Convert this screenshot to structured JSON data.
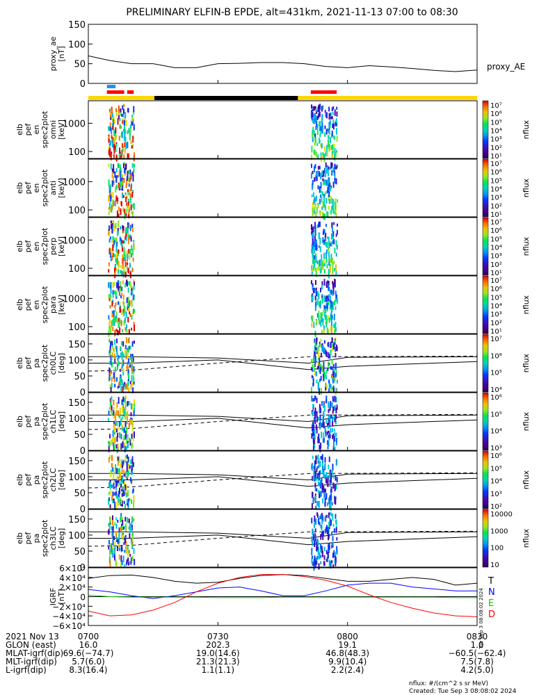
{
  "title": "PRELIMINARY ELFIN-B EPDE, alt=431km, 2021-11-13 07:00 to 08:30",
  "colors": {
    "sza_bar": "#ffd700",
    "eclipse_bar": "#000000",
    "science_red": "#ff0000",
    "science_blue": "#1e90ff",
    "grf_t": "#000000",
    "grf_n": "#0000ff",
    "grf_e": "#00cc00",
    "grf_d": "#ff0000"
  },
  "panels": [
    {
      "id": "proxy_ae",
      "label_lines": [
        "proxy_ae",
        "[nT]"
      ],
      "right_label": "proxy_AE",
      "ticks": [
        "0",
        "50",
        "100",
        "150"
      ]
    },
    {
      "id": "omni",
      "label_lines": [
        "elb",
        "pef",
        "en",
        "spec2plot",
        "omni",
        "[keV]"
      ],
      "ticks": [
        "100",
        "1000"
      ],
      "cb_ticks": [
        "10⁷",
        "10⁶",
        "10⁵",
        "10⁴",
        "10³",
        "10²",
        "10¹"
      ],
      "cb_unit": "nflux"
    },
    {
      "id": "anti",
      "label_lines": [
        "elb",
        "pef",
        "en",
        "spec2plot",
        "anti",
        "[keV]"
      ],
      "ticks": [
        "100",
        "1000"
      ],
      "cb_ticks": [
        "10⁷",
        "10⁶",
        "10⁵",
        "10⁴",
        "10³",
        "10²",
        "10¹"
      ],
      "cb_unit": "nflux"
    },
    {
      "id": "perp",
      "label_lines": [
        "elb",
        "pef",
        "en",
        "spec2plot",
        "perp",
        "[keV]"
      ],
      "ticks": [
        "100",
        "1000"
      ],
      "cb_ticks": [
        "10⁷",
        "10⁶",
        "10⁵",
        "10⁴",
        "10³",
        "10²",
        "10¹"
      ],
      "cb_unit": "nflux"
    },
    {
      "id": "para",
      "label_lines": [
        "elb",
        "pef",
        "en",
        "spec2plot",
        "para",
        "[keV]"
      ],
      "ticks": [
        "100",
        "1000"
      ],
      "cb_ticks": [
        "10⁷",
        "10⁶",
        "10⁵",
        "10⁴",
        "10³",
        "10²",
        "10¹"
      ],
      "cb_unit": "nflux"
    },
    {
      "id": "ch0LC",
      "label_lines": [
        "elb",
        "pef",
        "pa",
        "spec2plot",
        "ch0LC",
        "[deg]"
      ],
      "ticks": [
        "0",
        "50",
        "100",
        "150"
      ],
      "cb_ticks": [
        "10⁷",
        "10⁶",
        "10⁵",
        "10⁴"
      ],
      "cb_unit": "nflux"
    },
    {
      "id": "ch1LC",
      "label_lines": [
        "elb",
        "pef",
        "pa",
        "spec2plot",
        "ch1LC",
        "[deg]"
      ],
      "ticks": [
        "0",
        "50",
        "100",
        "150"
      ],
      "cb_ticks": [
        "10⁶",
        "10⁵",
        "10⁴",
        "10³"
      ],
      "cb_unit": "nflux"
    },
    {
      "id": "ch2LC",
      "label_lines": [
        "elb",
        "pef",
        "pa",
        "spec2plot",
        "ch2LC",
        "[deg]"
      ],
      "ticks": [
        "0",
        "50",
        "100",
        "150"
      ],
      "cb_ticks": [
        "10⁶",
        "10⁵",
        "10⁴",
        "10³",
        "10²"
      ],
      "cb_unit": "nflux"
    },
    {
      "id": "ch3LC",
      "label_lines": [
        "elb",
        "pef",
        "pa",
        "spec2plot",
        "ch3LC",
        "[deg]"
      ],
      "ticks": [
        "0",
        "50",
        "100",
        "150"
      ],
      "cb_ticks": [
        "10000",
        "1000",
        "100",
        "10"
      ],
      "cb_unit": "nflux"
    },
    {
      "id": "igrf",
      "label_lines": [
        "IGRF",
        "[nT]"
      ],
      "ticks": [
        "−6×10⁴",
        "−4×10⁴",
        "−2×10⁴",
        "0",
        "2×10⁴",
        "4×10⁴",
        "6×10⁴"
      ],
      "legend": [
        "T",
        "N",
        "E",
        "D"
      ],
      "side_note": "Tue Sep  3 08:08:02 2024"
    }
  ],
  "footer": {
    "row_labels": [
      "2021 Nov 13",
      "GLON (east)",
      "MLAT-igrf(dip)",
      "MLT-igrf(dip)",
      "L-igrf(dip)"
    ],
    "columns": [
      {
        "time": "0700",
        "values": [
          "16.0",
          "69.6(−74.7)",
          "5.7(6.0)",
          "8.3(16.4)"
        ]
      },
      {
        "time": "0730",
        "values": [
          "202.3",
          "19.0(14.6)",
          "21.3(21.3)",
          "1.1(1.1)"
        ]
      },
      {
        "time": "0800",
        "values": [
          "19.1",
          "46.8(48.3)",
          "9.9(10.4)",
          "2.2(2.4)"
        ]
      },
      {
        "time": "0830",
        "values": [
          "1.0",
          "−60.5(−62.4)",
          "7.5(7.8)",
          "4.2(5.0)"
        ]
      }
    ],
    "nflux_note": "nflux: #/(cm^2 s sr MeV)",
    "created": "Created: Tue Sep  3 08:08:02 2024"
  },
  "chart_data": [
    {
      "type": "line",
      "title": "",
      "ylabel": "proxy_ae [nT]",
      "ylim": [
        0,
        150
      ],
      "x_minutes": [
        0,
        5,
        10,
        15,
        20,
        25,
        30,
        35,
        40,
        45,
        50,
        55,
        60,
        65,
        70,
        75,
        80,
        85,
        90
      ],
      "series": [
        {
          "name": "proxy_AE",
          "values": [
            70,
            58,
            50,
            50,
            40,
            40,
            50,
            51,
            53,
            53,
            50,
            43,
            40,
            45,
            42,
            38,
            33,
            30,
            34
          ]
        }
      ]
    },
    {
      "type": "line",
      "title": "",
      "ylabel": "IGRF [nT]",
      "ylim": [
        -60000,
        60000
      ],
      "x_minutes": [
        0,
        5,
        10,
        15,
        20,
        25,
        30,
        35,
        40,
        45,
        50,
        55,
        60,
        65,
        70,
        75,
        80,
        85,
        90
      ],
      "series": [
        {
          "name": "T",
          "values": [
            38000,
            44000,
            45000,
            40000,
            32000,
            28000,
            30000,
            38000,
            44000,
            46000,
            44000,
            38000,
            32000,
            32000,
            36000,
            40000,
            36000,
            24000,
            28000
          ]
        },
        {
          "name": "N",
          "values": [
            15000,
            10000,
            2000,
            -4000,
            2000,
            10000,
            18000,
            20000,
            12000,
            2000,
            2000,
            12000,
            24000,
            28000,
            28000,
            20000,
            16000,
            12000,
            12000
          ]
        },
        {
          "name": "E",
          "values": [
            3000,
            0,
            -1000,
            -1000,
            -1000,
            -1000,
            -2000,
            -2000,
            -2000,
            -1000,
            -1000,
            -1000,
            -1000,
            -1000,
            -1000,
            -1000,
            -1000,
            -2000,
            -2000
          ]
        },
        {
          "name": "D",
          "values": [
            -30000,
            -40000,
            -38000,
            -28000,
            -12000,
            10000,
            28000,
            40000,
            46000,
            46000,
            42000,
            34000,
            22000,
            4000,
            -12000,
            -24000,
            -34000,
            -40000,
            -42000
          ]
        }
      ]
    }
  ]
}
